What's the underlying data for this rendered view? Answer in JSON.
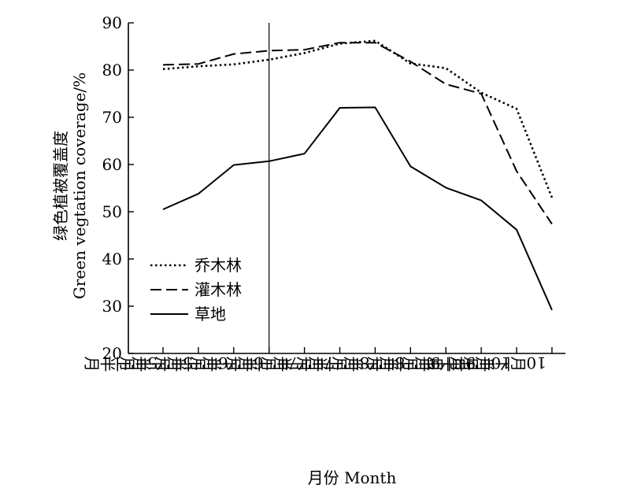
{
  "chart_data": {
    "type": "line",
    "xlabel": "月份 Month",
    "ylabel_cn": "绿色植被覆盖度",
    "ylabel_en": "Green vegtation coverage/%",
    "categories": [
      "5月上半月",
      "5月下半月",
      "6月上半月",
      "6月下半月",
      "7月上半月",
      "7月下半月",
      "8月上半月",
      "8月下半月",
      "9月上半月",
      "9月下半月",
      "10月上半月",
      "10月下半月"
    ],
    "ylim": [
      20,
      90
    ],
    "yticks": [
      20,
      30,
      40,
      50,
      60,
      70,
      80,
      90
    ],
    "vline_after_category": "6月下半月",
    "legend_position": "middle-left",
    "series": [
      {
        "name": "乔木林",
        "style": "dotted",
        "values": [
          80.2,
          80.8,
          81.2,
          82.2,
          83.6,
          85.6,
          86.2,
          81.4,
          80.4,
          75.2,
          71.8,
          53.0
        ]
      },
      {
        "name": "灌木林",
        "style": "dashed",
        "values": [
          81.1,
          81.3,
          83.4,
          84.1,
          84.3,
          85.8,
          85.8,
          81.8,
          77.0,
          75.0,
          58.6,
          47.4
        ]
      },
      {
        "name": "草地",
        "style": "solid",
        "values": [
          50.5,
          53.8,
          59.9,
          60.7,
          62.3,
          72.0,
          72.1,
          59.6,
          55.1,
          52.4,
          46.2,
          29.2
        ]
      }
    ]
  }
}
